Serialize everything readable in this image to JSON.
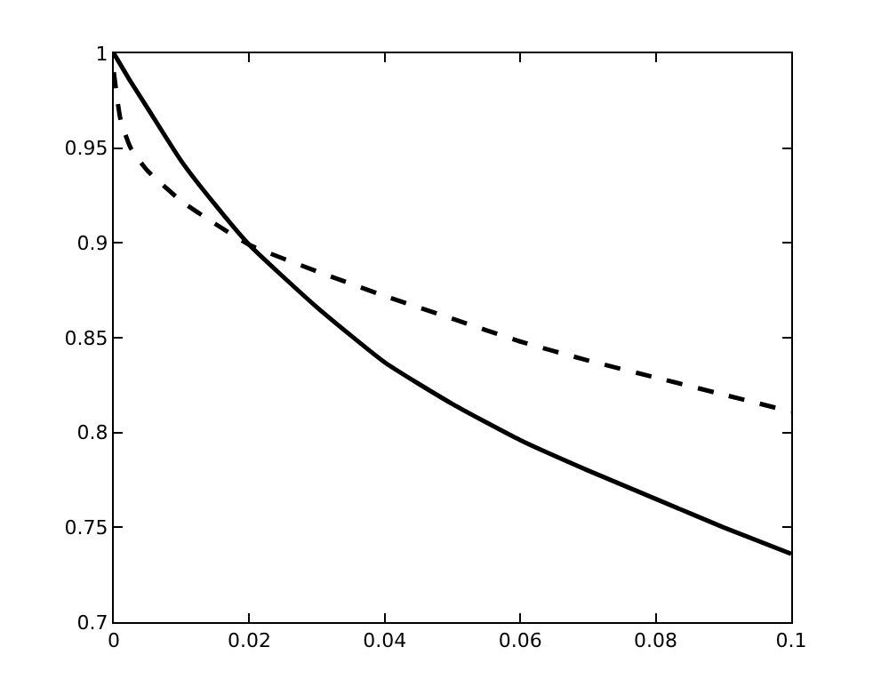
{
  "chart_data": {
    "type": "line",
    "xlim": [
      0,
      0.1
    ],
    "ylim": [
      0.7,
      1
    ],
    "xticks": [
      0,
      0.02,
      0.04,
      0.06,
      0.08,
      0.1
    ],
    "yticks": [
      0.7,
      0.75,
      0.8,
      0.85,
      0.9,
      0.95,
      1
    ],
    "grid": false,
    "marker": "none",
    "series": [
      {
        "color": "#000000",
        "line_style": "solid",
        "x": [
          0,
          0.0025,
          0.005,
          0.01,
          0.015,
          0.02,
          0.03,
          0.04,
          0.05,
          0.06,
          0.07,
          0.08,
          0.09,
          0.1
        ],
        "values": [
          1,
          0.985,
          0.971,
          0.943,
          0.92,
          0.899,
          0.866,
          0.837,
          0.815,
          0.796,
          0.78,
          0.765,
          0.75,
          0.736
        ]
      },
      {
        "color": "#000000",
        "line_style": "dashed",
        "x": [
          0,
          0.001,
          0.0025,
          0.005,
          0.01,
          0.015,
          0.02,
          0.03,
          0.04,
          0.05,
          0.06,
          0.07,
          0.08,
          0.09,
          0.1
        ],
        "values": [
          0.99,
          0.965,
          0.95,
          0.938,
          0.922,
          0.91,
          0.899,
          0.885,
          0.872,
          0.86,
          0.848,
          0.838,
          0.829,
          0.82,
          0.811
        ]
      }
    ]
  }
}
